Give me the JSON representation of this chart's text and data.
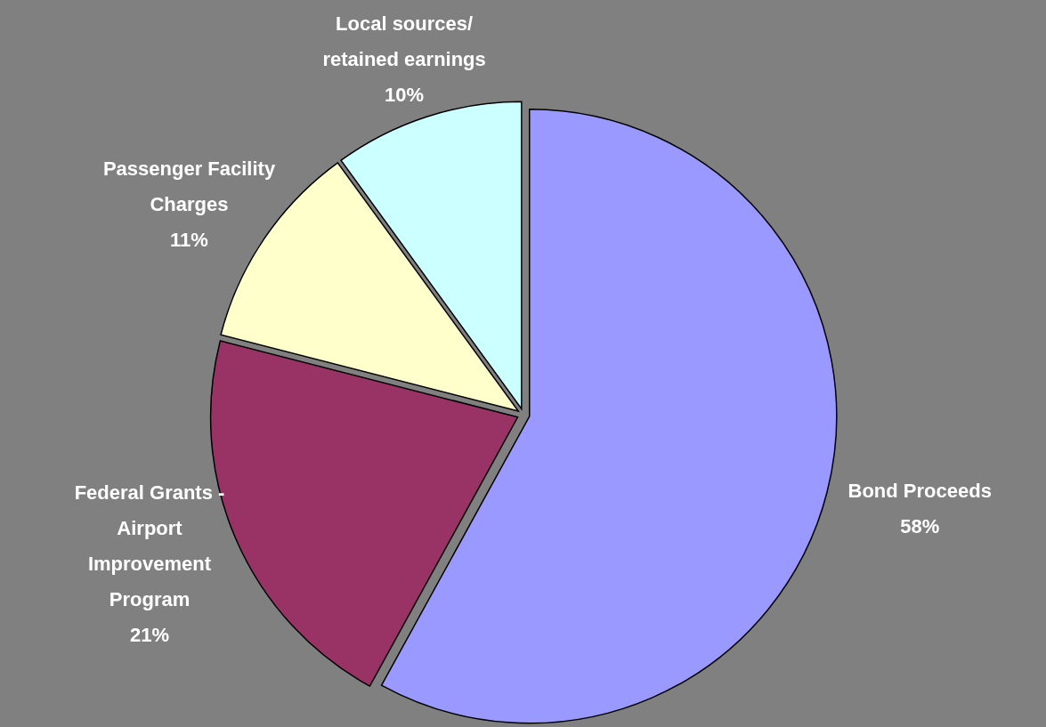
{
  "chart_data": {
    "type": "pie",
    "categories": [
      "Bond Proceeds",
      "Federal Grants -\nAirport\nImprovement\nProgram",
      "Passenger Facility\nCharges",
      "Local sources/\nretained earnings"
    ],
    "values": [
      58,
      21,
      11,
      10
    ],
    "colors": [
      "#9999ff",
      "#993366",
      "#ffffcc",
      "#ccffff"
    ],
    "value_labels": [
      "58%",
      "21%",
      "11%",
      "10%"
    ]
  }
}
